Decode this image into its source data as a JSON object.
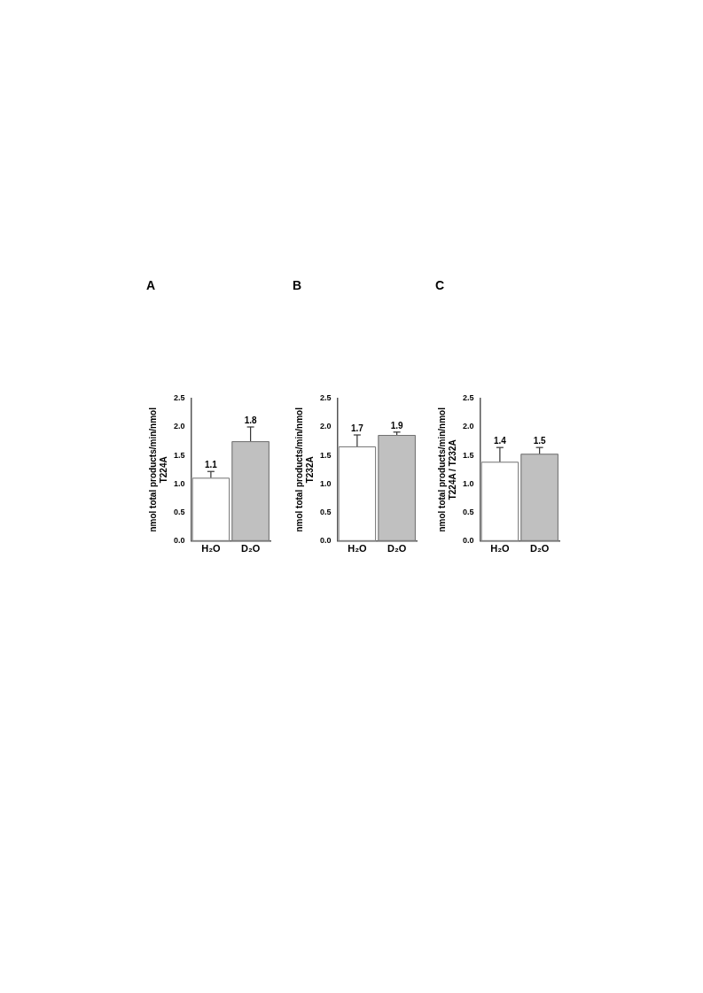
{
  "chart_data": [
    {
      "type": "bar",
      "title": "A",
      "ylabel": "nmol total products/min/nmol\nT224A",
      "categories": [
        "H₂O",
        "D₂O"
      ],
      "values": [
        1.11,
        1.75
      ],
      "colors": [
        "#ffffff",
        "#c0c0c0"
      ],
      "errors": [
        [
          1.11,
          1.22
        ],
        [
          1.75,
          2.0
        ]
      ],
      "value_labels": [
        "1.1",
        "1.8"
      ],
      "ylim": [
        0,
        2.5
      ],
      "yticks": [
        {
          "value": 0,
          "label": "0.0"
        },
        0.5,
        {
          "value": 1,
          "label": "1.0"
        },
        1.5,
        {
          "value": 2,
          "label": "2.0"
        },
        2.5
      ],
      "grid": false,
      "legend": false
    },
    {
      "type": "bar",
      "title": "B",
      "ylabel": "nmol total products/min/nmol\nT232A",
      "categories": [
        "H₂O",
        "D₂O"
      ],
      "values": [
        1.66,
        1.86
      ],
      "colors": [
        "#ffffff",
        "#c0c0c0"
      ],
      "errors": [
        [
          1.66,
          1.86
        ],
        [
          1.86,
          1.91
        ]
      ],
      "value_labels": [
        "1.7",
        "1.9"
      ],
      "ylim": [
        0,
        2.5
      ],
      "yticks": [
        {
          "value": 0,
          "label": "0.0"
        },
        0.5,
        {
          "value": 1,
          "label": "1.0"
        },
        1.5,
        {
          "value": 2,
          "label": "2.0"
        },
        2.5
      ],
      "grid": false,
      "legend": false
    },
    {
      "type": "bar",
      "title": "C",
      "ylabel": "nmol total products/min/nmol\nT224A / T232A",
      "categories": [
        "H₂O",
        "D₂O"
      ],
      "values": [
        1.39,
        1.53
      ],
      "colors": [
        "#ffffff",
        "#c0c0c0"
      ],
      "errors": [
        [
          1.39,
          1.64
        ],
        [
          1.53,
          1.64
        ]
      ],
      "value_labels": [
        "1.4",
        "1.5"
      ],
      "ylim": [
        0,
        2.5
      ],
      "yticks": [
        {
          "value": 0,
          "label": "0.0"
        },
        0.5,
        {
          "value": 1,
          "label": "1.0"
        },
        1.5,
        {
          "value": 2,
          "label": "2.0"
        },
        2.5
      ],
      "grid": false,
      "legend": false
    }
  ]
}
